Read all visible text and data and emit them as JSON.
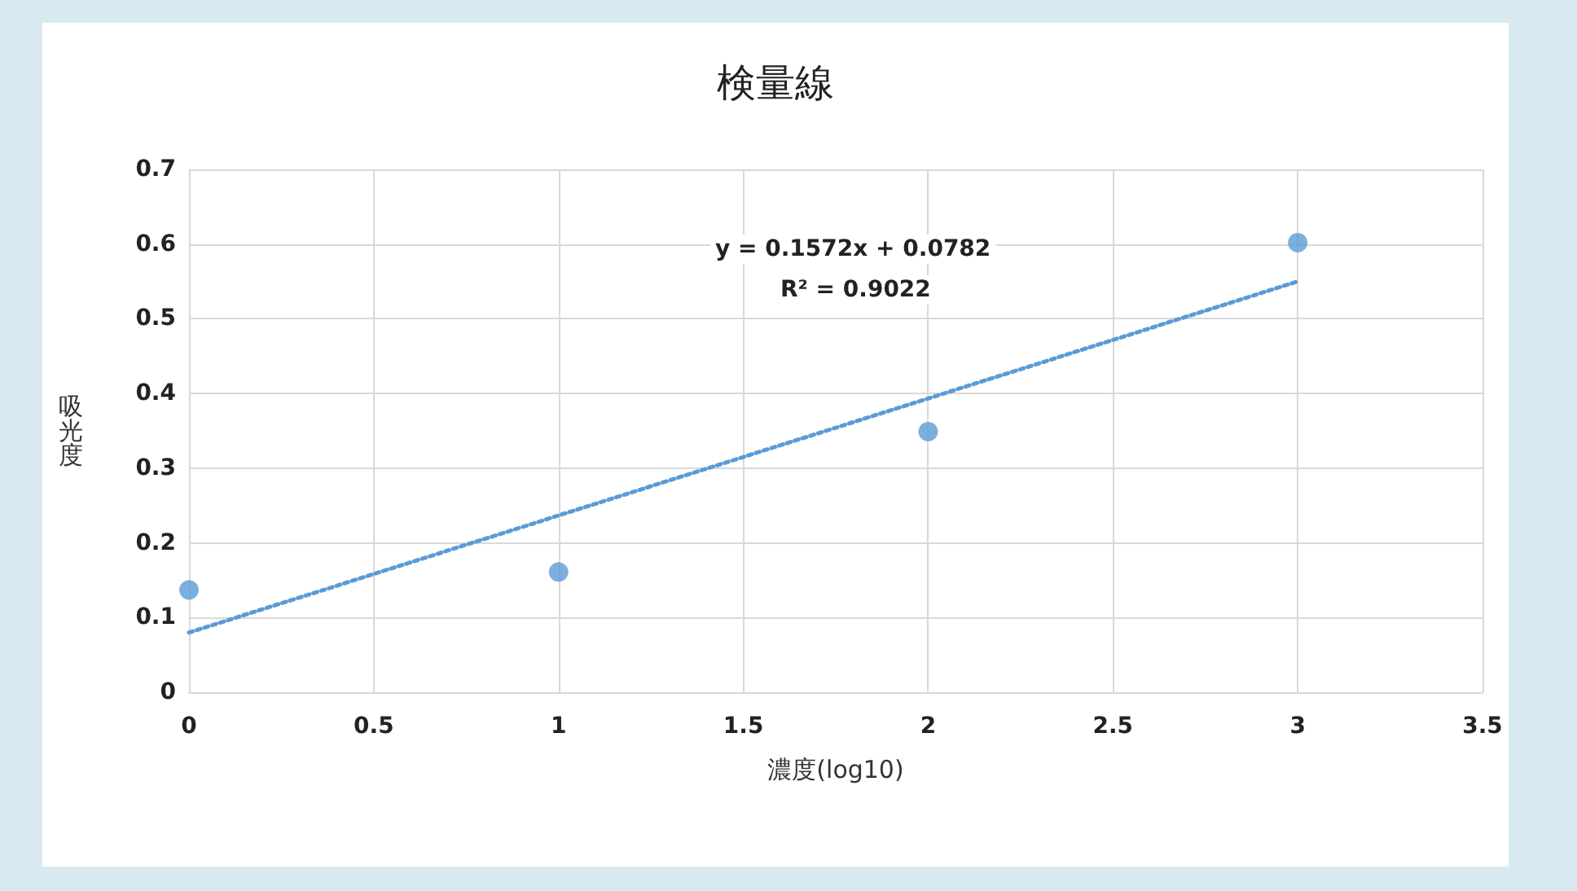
{
  "chart_data": {
    "type": "scatter",
    "title": "検量線",
    "xlabel": "濃度(log10)",
    "ylabel": "吸光度",
    "x": [
      0,
      1,
      2,
      3
    ],
    "series": [
      {
        "color": "#5b9bd5",
        "marker": "circle",
        "values": [
          0.137,
          0.161,
          0.349,
          0.602
        ]
      },
      {
        "type": "line",
        "color": "#5b9bd5",
        "line_style": "dotted",
        "marker": "none",
        "x": [
          0,
          3
        ],
        "values": [
          0.08,
          0.55
        ]
      }
    ],
    "annotations": [
      "y = 0.1572x + 0.0782",
      "R² = 0.9022"
    ],
    "xlim": [
      0,
      3.5
    ],
    "xticks": [
      0,
      0.5,
      1,
      1.5,
      2,
      2.5,
      3,
      3.5
    ],
    "ylim": [
      0,
      0.7
    ],
    "yticks": [
      0,
      0.1,
      0.2,
      0.3,
      0.4,
      0.5,
      0.6,
      0.7
    ],
    "grid": true
  }
}
